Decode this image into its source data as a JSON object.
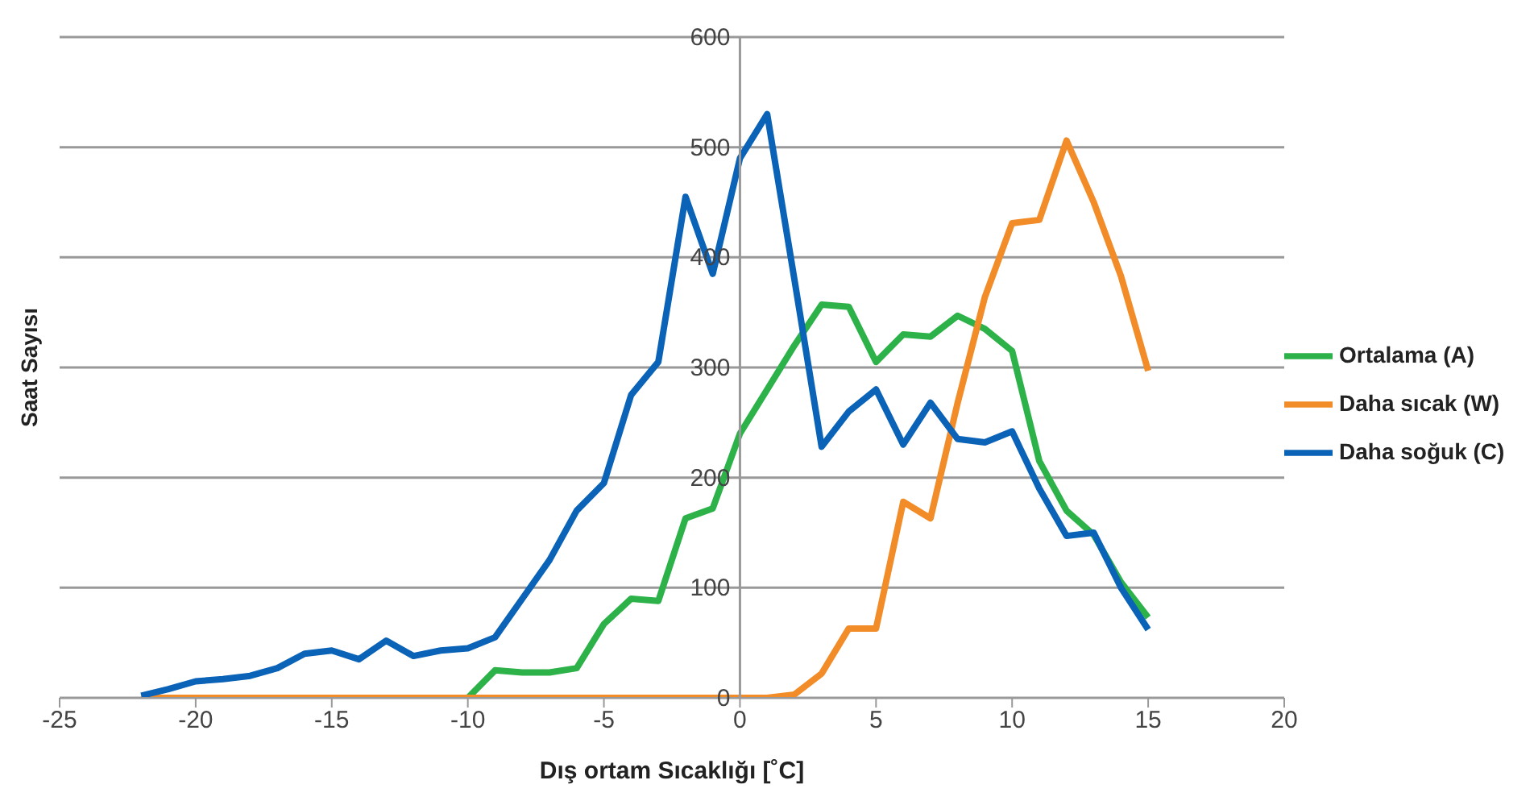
{
  "chart_data": {
    "type": "line",
    "xlabel": "Dış ortam Sıcaklığı [˚C]",
    "ylabel": "Saat Sayısı",
    "x": [
      -22,
      -21,
      -20,
      -19,
      -18,
      -17,
      -16,
      -15,
      -14,
      -13,
      -12,
      -11,
      -10,
      -9,
      -8,
      -7,
      -6,
      -5,
      -4,
      -3,
      -2,
      -1,
      0,
      1,
      2,
      3,
      4,
      5,
      6,
      7,
      8,
      9,
      10,
      11,
      12,
      13,
      14,
      15
    ],
    "series": [
      {
        "name": "Ortalama (A)",
        "color": "#2db24a",
        "values": [
          null,
          null,
          null,
          null,
          null,
          null,
          null,
          null,
          null,
          null,
          null,
          null,
          0,
          25,
          23,
          23,
          27,
          67,
          90,
          88,
          163,
          172,
          240,
          280,
          320,
          357,
          355,
          305,
          330,
          328,
          347,
          335,
          315,
          215,
          170,
          148,
          105,
          73
        ]
      },
      {
        "name": "Daha sıcak (W)",
        "color": "#f28c28",
        "values": [
          0,
          0,
          0,
          0,
          0,
          0,
          0,
          0,
          0,
          0,
          0,
          0,
          0,
          0,
          0,
          0,
          0,
          0,
          0,
          0,
          0,
          0,
          0,
          0,
          3,
          22,
          63,
          63,
          178,
          163,
          268,
          364,
          431,
          434,
          506,
          450,
          383,
          297
        ]
      },
      {
        "name": "Daha soğuk (C)",
        "color": "#0b63b8",
        "values": [
          2,
          8,
          15,
          17,
          20,
          27,
          40,
          43,
          35,
          52,
          38,
          43,
          45,
          55,
          90,
          125,
          170,
          195,
          275,
          305,
          455,
          385,
          490,
          530,
          380,
          228,
          260,
          280,
          230,
          268,
          235,
          232,
          242,
          190,
          147,
          150,
          100,
          62
        ]
      }
    ],
    "xlim": [
      -25,
      20
    ],
    "xticks": [
      -25,
      -20,
      -15,
      -10,
      -5,
      0,
      5,
      10,
      15,
      20
    ],
    "ylim": [
      0,
      600
    ],
    "yticks": [
      0,
      100,
      200,
      300,
      400,
      500,
      600
    ],
    "grid": "y",
    "legend": "right",
    "marker": "none",
    "line_style": "solid"
  }
}
